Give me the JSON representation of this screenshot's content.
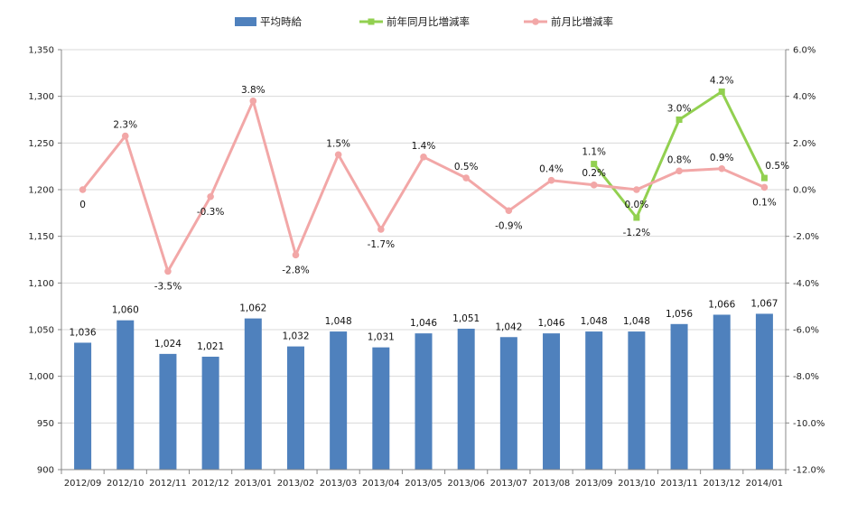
{
  "chart_data": {
    "type": "bar",
    "categories": [
      "2012/09",
      "2012/10",
      "2012/11",
      "2012/12",
      "2013/01",
      "2013/02",
      "2013/03",
      "2013/04",
      "2013/05",
      "2013/06",
      "2013/07",
      "2013/08",
      "2013/09",
      "2013/10",
      "2013/11",
      "2013/12",
      "2014/01"
    ],
    "legend_position": "top",
    "grid": true,
    "y_left": {
      "min": 900,
      "max": 1350,
      "step": 50,
      "tick_labels": [
        "900",
        "950",
        "1,000",
        "1,050",
        "1,100",
        "1,150",
        "1,200",
        "1,250",
        "1,300",
        "1,350"
      ]
    },
    "y_right": {
      "min": -12,
      "max": 6,
      "step": 2,
      "tick_labels": [
        "-12.0%",
        "-10.0%",
        "-8.0%",
        "-6.0%",
        "-4.0%",
        "-2.0%",
        "0.0%",
        "2.0%",
        "4.0%",
        "6.0%"
      ]
    },
    "series": [
      {
        "name": "平均時給",
        "type": "bar",
        "axis": "left",
        "color": "#4F81BD",
        "values": [
          1036,
          1060,
          1024,
          1021,
          1062,
          1032,
          1048,
          1031,
          1046,
          1051,
          1042,
          1046,
          1048,
          1048,
          1056,
          1066,
          1067
        ],
        "labels": [
          "1,036",
          "1,060",
          "1,024",
          "1,021",
          "1,062",
          "1,032",
          "1,048",
          "1,031",
          "1,046",
          "1,051",
          "1,042",
          "1,046",
          "1,048",
          "1,048",
          "1,056",
          "1,066",
          "1,067"
        ]
      },
      {
        "name": "前年同月比増減率",
        "type": "line",
        "axis": "right",
        "color": "#92D050",
        "marker": "square",
        "values": [
          null,
          null,
          null,
          null,
          null,
          null,
          null,
          null,
          null,
          null,
          null,
          null,
          1.1,
          -1.2,
          3.0,
          4.2,
          0.5
        ],
        "labels": [
          null,
          null,
          null,
          null,
          null,
          null,
          null,
          null,
          null,
          null,
          null,
          null,
          "1.1%",
          "-1.2%",
          "3.0%",
          "4.2%",
          "0.5%"
        ]
      },
      {
        "name": "前月比増減率",
        "type": "line",
        "axis": "right",
        "color": "#F2A7A7",
        "marker": "circle",
        "values": [
          0,
          2.3,
          -3.5,
          -0.3,
          3.8,
          -2.8,
          1.5,
          -1.7,
          1.4,
          0.5,
          -0.9,
          0.4,
          0.2,
          0.0,
          0.8,
          0.9,
          0.1
        ],
        "labels": [
          "0",
          "2.3%",
          "-3.5%",
          "-0.3%",
          "3.8%",
          "-2.8%",
          "1.5%",
          "-1.7%",
          "1.4%",
          "0.5%",
          "-0.9%",
          "0.4%",
          "0.2%",
          "0.0%",
          "0.8%",
          "0.9%",
          "0.1%"
        ]
      }
    ]
  }
}
